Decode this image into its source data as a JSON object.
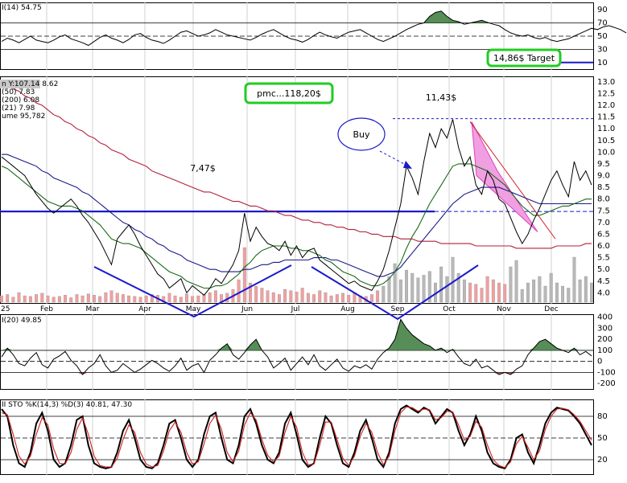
{
  "chart_data": [
    {
      "type": "line",
      "panel": "CCI (RSI) top indicator",
      "legend": "I(14) 54.75",
      "y_ticks": [
        "90",
        "70",
        "50",
        "30",
        "10"
      ],
      "ylim": [
        0,
        100
      ],
      "guide_levels": [
        70,
        50,
        30
      ],
      "target_level": 10,
      "annotation_target": "14,86$ Target",
      "series": [
        {
          "name": "I(14)",
          "values": [
            42,
            47,
            44,
            40,
            45,
            50,
            44,
            42,
            40,
            44,
            49,
            52,
            46,
            43,
            40,
            36,
            42,
            48,
            52,
            47,
            44,
            40,
            45,
            52,
            54,
            48,
            44,
            42,
            39,
            44,
            50,
            56,
            58,
            54,
            50,
            52,
            55,
            60,
            56,
            52,
            50,
            48,
            46,
            44,
            48,
            53,
            57,
            60,
            55,
            50,
            46,
            44,
            41,
            45,
            51,
            56,
            52,
            49,
            47,
            52,
            56,
            58,
            60,
            55,
            50,
            45,
            42,
            46,
            50,
            55,
            60,
            64,
            68,
            70,
            80,
            86,
            88,
            80,
            74,
            72,
            68,
            70,
            72,
            74,
            71,
            68,
            66,
            60,
            55,
            52,
            50,
            52,
            48,
            46,
            48,
            44,
            42,
            44,
            46,
            50,
            54,
            58,
            62,
            60,
            64,
            66,
            63,
            60,
            55
          ]
        }
      ]
    },
    {
      "type": "line",
      "panel": "Price",
      "legend": [
        "n Y:107.14 8.62",
        "(50) 7.83",
        "(200) 6.08",
        "(21) 7.98",
        "ume 95,782"
      ],
      "y_ticks": [
        "13.0",
        "12.5",
        "12.0",
        "11.5",
        "11.0",
        "10.5",
        "10.0",
        "9.5",
        "9.0",
        "8.5",
        "8.0",
        "7.5",
        "7.0",
        "6.5",
        "6.0",
        "5.5",
        "5.0",
        "4.5",
        "4.0"
      ],
      "x_ticks": [
        "25",
        "Feb",
        "Mar",
        "Apr",
        "May",
        "Jun",
        "Jul",
        "Aug",
        "Sep",
        "Oct",
        "Nov",
        "Dec"
      ],
      "ylim": [
        3.6,
        13.2
      ],
      "annotations": [
        "7,47$",
        "11,43$",
        "pmc...118,20$",
        "Buy"
      ],
      "levels": {
        "support": 7.47,
        "high": 11.43
      },
      "series": [
        {
          "name": "Price",
          "values": [
            9.8,
            9.6,
            9.4,
            9.2,
            9.0,
            8.6,
            8.2,
            7.9,
            7.6,
            7.4,
            7.6,
            7.8,
            8.0,
            7.7,
            7.3,
            7.0,
            6.6,
            6.2,
            5.7,
            5.2,
            6.3,
            6.6,
            6.9,
            6.5,
            6.0,
            5.6,
            5.2,
            4.8,
            4.6,
            4.2,
            4.4,
            4.6,
            4.0,
            4.3,
            4.1,
            3.9,
            4.2,
            4.6,
            4.4,
            4.8,
            5.2,
            5.8,
            7.4,
            6.2,
            6.8,
            6.4,
            6.1,
            6.0,
            5.8,
            6.2,
            5.6,
            6.0,
            5.5,
            5.8,
            5.9,
            5.4,
            5.2,
            5.0,
            4.8,
            4.6,
            4.4,
            4.5,
            4.3,
            4.2,
            4.1,
            4.5,
            5.0,
            5.8,
            6.8,
            7.8,
            9.4,
            8.9,
            8.2,
            9.6,
            10.8,
            10.2,
            11.0,
            10.6,
            11.4,
            10.2,
            9.4,
            9.8,
            8.6,
            8.2,
            9.2,
            8.8,
            8.0,
            7.8,
            7.2,
            6.6,
            6.1,
            6.5,
            7.1,
            7.6,
            8.2,
            8.8,
            9.2,
            8.6,
            8.1,
            9.6,
            8.8,
            9.2,
            8.6
          ]
        },
        {
          "name": "(21) 7.98",
          "values": [
            9.4,
            9.3,
            9.1,
            8.9,
            8.7,
            8.5,
            8.3,
            8.1,
            7.9,
            7.8,
            7.7,
            7.7,
            7.7,
            7.6,
            7.5,
            7.3,
            7.1,
            6.9,
            6.6,
            6.3,
            6.2,
            6.1,
            6.1,
            6.0,
            5.9,
            5.7,
            5.5,
            5.3,
            5.1,
            4.9,
            4.8,
            4.7,
            4.5,
            4.4,
            4.3,
            4.2,
            4.2,
            4.3,
            4.3,
            4.4,
            4.6,
            4.8,
            5.1,
            5.3,
            5.6,
            5.8,
            5.9,
            6.0,
            6.0,
            6.0,
            5.9,
            5.9,
            5.8,
            5.8,
            5.7,
            5.6,
            5.4,
            5.3,
            5.1,
            4.9,
            4.8,
            4.7,
            4.5,
            4.4,
            4.3,
            4.3,
            4.4,
            4.6,
            4.9,
            5.3,
            5.9,
            6.4,
            6.8,
            7.3,
            7.8,
            8.2,
            8.6,
            9.0,
            9.4,
            9.5,
            9.5,
            9.5,
            9.4,
            9.3,
            9.2,
            9.0,
            8.8,
            8.6,
            8.3,
            8.0,
            7.7,
            7.5,
            7.3,
            7.3,
            7.4,
            7.5,
            7.6,
            7.7,
            7.7,
            7.8,
            7.9,
            8.0,
            8.0
          ]
        },
        {
          "name": "(50) 7.83",
          "values": [
            9.9,
            9.9,
            9.8,
            9.7,
            9.6,
            9.5,
            9.4,
            9.2,
            9.1,
            8.9,
            8.8,
            8.7,
            8.6,
            8.5,
            8.3,
            8.2,
            8.0,
            7.8,
            7.6,
            7.4,
            7.2,
            7.0,
            6.9,
            6.7,
            6.6,
            6.4,
            6.3,
            6.1,
            6.0,
            5.8,
            5.7,
            5.6,
            5.4,
            5.3,
            5.2,
            5.1,
            5.0,
            5.0,
            4.9,
            4.9,
            4.9,
            4.9,
            5.0,
            5.0,
            5.1,
            5.2,
            5.2,
            5.3,
            5.3,
            5.4,
            5.4,
            5.4,
            5.4,
            5.4,
            5.5,
            5.5,
            5.5,
            5.4,
            5.4,
            5.3,
            5.2,
            5.1,
            5.0,
            4.9,
            4.8,
            4.7,
            4.7,
            4.8,
            4.9,
            5.1,
            5.4,
            5.7,
            6.0,
            6.3,
            6.6,
            6.9,
            7.2,
            7.5,
            7.8,
            8.0,
            8.2,
            8.3,
            8.4,
            8.5,
            8.5,
            8.5,
            8.5,
            8.4,
            8.3,
            8.2,
            8.1,
            8.0,
            7.9,
            7.8,
            7.8,
            7.8,
            7.8,
            7.8,
            7.8,
            7.8,
            7.8,
            7.8,
            7.8
          ]
        },
        {
          "name": "(200) 6.08",
          "values": [
            13.0,
            12.9,
            12.7,
            12.6,
            12.4,
            12.3,
            12.1,
            12.0,
            11.8,
            11.6,
            11.5,
            11.3,
            11.2,
            11.0,
            10.9,
            10.7,
            10.6,
            10.4,
            10.3,
            10.1,
            10.0,
            9.9,
            9.7,
            9.6,
            9.5,
            9.4,
            9.2,
            9.1,
            9.0,
            8.9,
            8.8,
            8.7,
            8.6,
            8.5,
            8.4,
            8.3,
            8.3,
            8.2,
            8.1,
            8.0,
            7.9,
            7.9,
            7.8,
            7.7,
            7.7,
            7.6,
            7.5,
            7.5,
            7.4,
            7.3,
            7.3,
            7.2,
            7.1,
            7.1,
            7.0,
            7.0,
            6.9,
            6.9,
            6.8,
            6.8,
            6.7,
            6.7,
            6.6,
            6.6,
            6.5,
            6.5,
            6.4,
            6.4,
            6.4,
            6.3,
            6.3,
            6.3,
            6.2,
            6.2,
            6.2,
            6.2,
            6.1,
            6.1,
            6.1,
            6.1,
            6.1,
            6.1,
            6.0,
            6.0,
            6.0,
            6.0,
            6.0,
            6.0,
            6.0,
            5.9,
            5.9,
            5.9,
            5.9,
            5.9,
            5.9,
            5.9,
            6.0,
            6.0,
            6.0,
            6.0,
            6.0,
            6.1,
            6.1
          ]
        },
        {
          "name": "Volume",
          "values": [
            0.1,
            0.12,
            0.08,
            0.15,
            0.1,
            0.09,
            0.12,
            0.14,
            0.1,
            0.08,
            0.09,
            0.11,
            0.07,
            0.12,
            0.1,
            0.13,
            0.11,
            0.09,
            0.15,
            0.18,
            0.14,
            0.12,
            0.1,
            0.09,
            0.08,
            0.1,
            0.12,
            0.11,
            0.09,
            0.14,
            0.1,
            0.08,
            0.13,
            0.09,
            0.1,
            0.12,
            0.15,
            0.18,
            0.12,
            0.14,
            0.2,
            0.35,
            0.85,
            0.3,
            0.25,
            0.22,
            0.18,
            0.15,
            0.12,
            0.2,
            0.18,
            0.16,
            0.22,
            0.14,
            0.12,
            0.18,
            0.15,
            0.1,
            0.12,
            0.14,
            0.11,
            0.15,
            0.1,
            0.09,
            0.12,
            0.18,
            0.25,
            0.4,
            0.6,
            0.35,
            0.5,
            0.45,
            0.38,
            0.42,
            0.48,
            0.3,
            0.55,
            0.4,
            0.7,
            0.45,
            0.35,
            0.3,
            0.28,
            0.22,
            0.4,
            0.35,
            0.3,
            0.28,
            0.55,
            0.65,
            0.2,
            0.3,
            0.35,
            0.4,
            0.25,
            0.45,
            0.3,
            0.25,
            0.22,
            0.7,
            0.35,
            0.4,
            0.3
          ]
        }
      ]
    },
    {
      "type": "area",
      "panel": "CCI",
      "legend": "I(20) 49.85",
      "y_ticks": [
        "400",
        "300",
        "200",
        "100",
        "0",
        "-100",
        "-200"
      ],
      "ylim": [
        -250,
        420
      ],
      "series": [
        {
          "name": "I(20)",
          "values": [
            40,
            120,
            60,
            -20,
            -40,
            30,
            80,
            -30,
            -60,
            20,
            50,
            90,
            10,
            -40,
            -120,
            -60,
            -20,
            60,
            -40,
            -100,
            -80,
            -20,
            -60,
            -100,
            -70,
            -30,
            10,
            -20,
            -60,
            -90,
            -40,
            30,
            -80,
            -40,
            -20,
            -100,
            10,
            60,
            120,
            160,
            60,
            20,
            80,
            150,
            200,
            100,
            40,
            -60,
            -20,
            30,
            -80,
            -20,
            40,
            -30,
            60,
            -40,
            -80,
            -30,
            20,
            -60,
            -90,
            -40,
            -60,
            -30,
            -70,
            20,
            80,
            120,
            200,
            380,
            300,
            240,
            200,
            160,
            140,
            100,
            120,
            80,
            110,
            40,
            -20,
            -40,
            20,
            -60,
            -40,
            -80,
            -120,
            -100,
            -120,
            -70,
            -40,
            60,
            120,
            180,
            200,
            160,
            120,
            100,
            80,
            120,
            60,
            90,
            50
          ]
        }
      ]
    },
    {
      "type": "line",
      "panel": "Stochastic",
      "legend": "II STO %K(14,3) %D(3) 40.81, 47.30",
      "y_ticks": [
        "80",
        "50",
        "20"
      ],
      "ylim": [
        0,
        100
      ],
      "series": [
        {
          "name": "%K",
          "values": [
            90,
            80,
            40,
            15,
            10,
            30,
            70,
            85,
            60,
            20,
            10,
            15,
            40,
            75,
            80,
            40,
            15,
            10,
            8,
            10,
            30,
            60,
            75,
            50,
            20,
            10,
            8,
            15,
            40,
            70,
            75,
            50,
            20,
            10,
            20,
            55,
            80,
            85,
            50,
            20,
            15,
            40,
            80,
            90,
            70,
            40,
            20,
            15,
            30,
            70,
            85,
            55,
            20,
            10,
            15,
            50,
            80,
            70,
            40,
            15,
            10,
            30,
            60,
            75,
            50,
            20,
            10,
            30,
            70,
            90,
            95,
            90,
            85,
            92,
            88,
            70,
            80,
            90,
            85,
            60,
            40,
            55,
            80,
            60,
            30,
            15,
            10,
            8,
            20,
            50,
            55,
            30,
            15,
            40,
            70,
            85,
            92,
            90,
            88,
            80,
            70,
            55,
            40
          ]
        },
        {
          "name": "%D",
          "values": [
            85,
            82,
            55,
            25,
            14,
            25,
            55,
            78,
            68,
            35,
            15,
            14,
            30,
            62,
            78,
            55,
            25,
            12,
            10,
            10,
            22,
            48,
            68,
            58,
            30,
            14,
            10,
            12,
            32,
            60,
            72,
            58,
            30,
            14,
            17,
            42,
            70,
            82,
            62,
            30,
            17,
            32,
            68,
            85,
            75,
            48,
            26,
            17,
            25,
            58,
            80,
            65,
            30,
            13,
            14,
            40,
            72,
            72,
            48,
            22,
            12,
            25,
            52,
            70,
            58,
            30,
            13,
            25,
            60,
            85,
            93,
            92,
            87,
            90,
            89,
            75,
            78,
            87,
            86,
            68,
            47,
            52,
            73,
            65,
            40,
            20,
            12,
            9,
            17,
            42,
            52,
            37,
            20,
            32,
            62,
            80,
            90,
            91,
            89,
            82,
            73,
            60,
            47
          ]
        }
      ]
    }
  ]
}
